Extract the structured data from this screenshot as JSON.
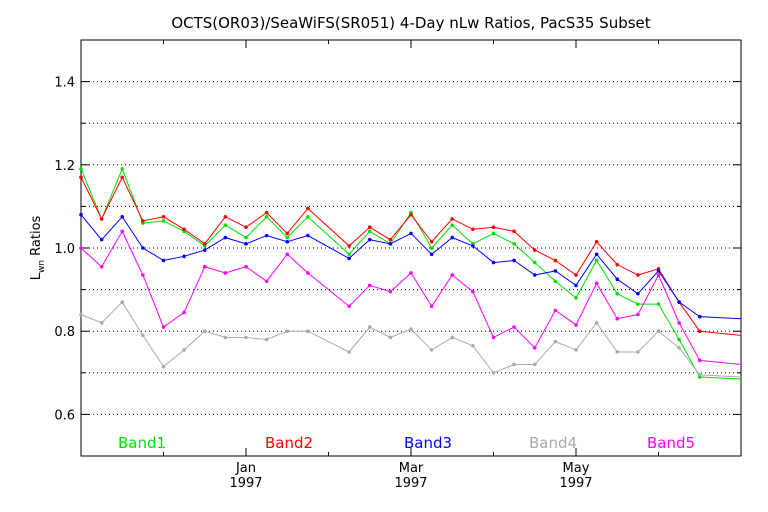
{
  "chart_data": {
    "type": "line",
    "title": "OCTS(OR03)/SeaWiFS(SR051) 4-Day nLw Ratios, PacS35 Subset",
    "ylabel": {
      "main": "L",
      "sub": "wn",
      "suffix": " Ratios"
    },
    "xlim": [
      0,
      32
    ],
    "ylim": [
      0.5,
      1.5
    ],
    "y_ticks": [
      0.6,
      0.8,
      1.0,
      1.2,
      1.4
    ],
    "y_tick_labels": [
      "0.6",
      "0.8",
      "1.0",
      "1.2",
      "1.4"
    ],
    "y_minor_ticks": [
      0.5,
      0.7,
      0.9,
      1.1,
      1.3,
      1.5
    ],
    "grid_y": [
      0.6,
      0.7,
      0.8,
      0.9,
      1.0,
      1.1,
      1.2,
      1.3,
      1.4
    ],
    "x_major_ticks": [
      {
        "x": 8,
        "label": "Jan",
        "year": "1997"
      },
      {
        "x": 16,
        "label": "Mar",
        "year": "1997"
      },
      {
        "x": 24,
        "label": "May",
        "year": "1997"
      }
    ],
    "x_minor_ticks": [
      4,
      12,
      20,
      28
    ],
    "x": [
      0,
      1,
      2,
      3,
      4,
      5,
      6,
      7,
      8,
      9,
      10,
      11,
      12,
      13,
      14,
      15,
      16,
      17,
      18,
      19,
      20,
      21,
      22,
      23,
      24,
      25,
      26,
      27,
      28,
      29,
      30,
      31,
      32
    ],
    "series": [
      {
        "name": "Band1",
        "color": "#00e000",
        "values": [
          1.19,
          1.07,
          1.19,
          1.06,
          1.065,
          1.04,
          1.005,
          1.055,
          1.025,
          1.075,
          1.025,
          1.075,
          null,
          0.985,
          1.04,
          1.01,
          1.085,
          1.0,
          1.055,
          1.01,
          1.035,
          1.01,
          0.965,
          0.92,
          0.88,
          0.97,
          0.89,
          0.865,
          0.865,
          0.78,
          0.69,
          null,
          null
        ],
        "breaks": [
          [
            11,
            13
          ]
        ]
      },
      {
        "name": "Band2",
        "color": "#ff0000",
        "values": [
          1.17,
          1.07,
          1.17,
          1.065,
          1.075,
          1.045,
          1.01,
          1.075,
          1.05,
          1.085,
          1.035,
          1.095,
          null,
          1.005,
          1.05,
          1.02,
          1.08,
          1.015,
          1.07,
          1.045,
          1.05,
          1.04,
          0.995,
          0.97,
          0.935,
          1.015,
          0.96,
          0.935,
          0.95,
          0.87,
          0.8,
          null,
          null
        ],
        "breaks": [
          [
            11,
            13
          ]
        ]
      },
      {
        "name": "Band3",
        "color": "#0000ff",
        "values": [
          1.08,
          1.02,
          1.075,
          1.0,
          0.97,
          0.98,
          0.995,
          1.025,
          1.01,
          1.03,
          1.015,
          1.03,
          null,
          0.975,
          1.02,
          1.01,
          1.035,
          0.985,
          1.025,
          1.005,
          0.965,
          0.97,
          0.935,
          0.945,
          0.91,
          0.985,
          0.925,
          0.89,
          0.945,
          0.87,
          0.835,
          null,
          null
        ],
        "breaks": [
          [
            11,
            13
          ]
        ]
      },
      {
        "name": "Band4",
        "color": "#aaaaaa",
        "values": [
          0.84,
          0.82,
          0.87,
          0.79,
          0.715,
          0.755,
          0.8,
          0.785,
          0.785,
          0.78,
          0.8,
          0.8,
          null,
          0.75,
          0.81,
          0.785,
          0.805,
          0.755,
          0.785,
          0.765,
          0.7,
          0.72,
          0.72,
          0.775,
          0.755,
          0.82,
          0.75,
          0.75,
          0.8,
          0.76,
          0.695,
          null,
          null
        ],
        "breaks": [
          [
            11,
            13
          ]
        ]
      },
      {
        "name": "Band5",
        "color": "#ff00ff",
        "values": [
          1.0,
          0.955,
          1.04,
          0.935,
          0.81,
          0.845,
          0.955,
          0.94,
          0.955,
          0.92,
          0.985,
          0.94,
          null,
          0.86,
          0.91,
          0.895,
          0.94,
          0.86,
          0.935,
          0.895,
          0.785,
          0.81,
          0.76,
          0.85,
          0.815,
          0.915,
          0.83,
          0.84,
          0.935,
          0.82,
          0.73,
          null,
          null
        ],
        "breaks": [
          [
            11,
            13
          ]
        ]
      }
    ],
    "tail": [
      {
        "series": 0,
        "x": [
          30,
          32
        ],
        "values": [
          0.69,
          0.685
        ]
      },
      {
        "series": 1,
        "x": [
          30,
          32
        ],
        "values": [
          0.8,
          0.79
        ]
      },
      {
        "series": 2,
        "x": [
          30,
          32
        ],
        "values": [
          0.835,
          0.83
        ]
      },
      {
        "series": 3,
        "x": [
          30,
          32
        ],
        "values": [
          0.695,
          0.69
        ]
      },
      {
        "series": 4,
        "x": [
          30,
          32
        ],
        "values": [
          0.73,
          0.72
        ]
      }
    ],
    "legend_placement": "bottom"
  }
}
